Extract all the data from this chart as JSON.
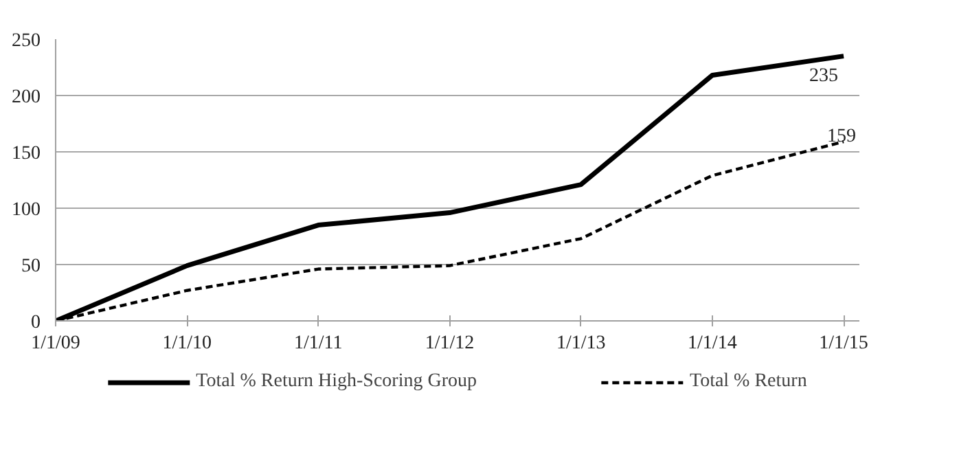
{
  "chart_data": {
    "type": "line",
    "categories": [
      "1/1/09",
      "1/1/10",
      "1/1/11",
      "1/1/12",
      "1/1/13",
      "1/1/14",
      "1/1/15"
    ],
    "series": [
      {
        "name": "Total % Return High-Scoring Group",
        "color": "#000000",
        "line_style": "solid",
        "values": [
          0,
          49,
          85,
          96,
          121,
          218,
          235
        ],
        "value_labels": [
          null,
          null,
          null,
          null,
          null,
          null,
          "235"
        ]
      },
      {
        "name": "Total % Return",
        "color": "#000000",
        "line_style": "dashed",
        "values": [
          0,
          27,
          46,
          49,
          73,
          129,
          159
        ],
        "value_labels": [
          null,
          null,
          null,
          null,
          null,
          null,
          "159"
        ]
      }
    ],
    "ylim": [
      0,
      250
    ],
    "yticks": [
      0,
      50,
      100,
      150,
      200,
      250
    ],
    "grid": "y",
    "legend": "bottom",
    "marker": "none"
  }
}
